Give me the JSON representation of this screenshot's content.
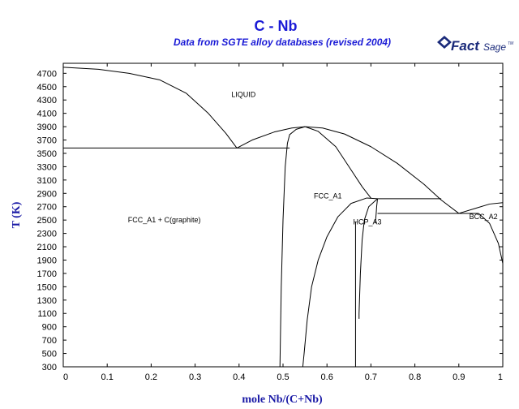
{
  "chart_data": {
    "type": "line",
    "title": "C - Nb",
    "subtitle": "Data from SGTE alloy databases (revised 2004)",
    "xlabel": "mole Nb/(C+Nb)",
    "ylabel": "T (K)",
    "xlim": [
      0,
      1
    ],
    "ylim": [
      300,
      4850
    ],
    "grid": false,
    "x_ticks": [
      0,
      0.1,
      0.2,
      0.3,
      0.4,
      0.5,
      0.6,
      0.7,
      0.8,
      0.9,
      1
    ],
    "x_tick_labels": [
      "0",
      "0.1",
      "0.2",
      "0.3",
      "0.4",
      "0.5",
      "0.6",
      "0.7",
      "0.8",
      "0.9",
      "1"
    ],
    "y_ticks": [
      300,
      500,
      700,
      900,
      1100,
      1300,
      1500,
      1700,
      1900,
      2100,
      2300,
      2500,
      2700,
      2900,
      3100,
      3300,
      3500,
      3700,
      3900,
      4100,
      4300,
      4500,
      4700
    ],
    "y_tick_labels": [
      "300",
      "500",
      "700",
      "900",
      "1100",
      "1300",
      "1500",
      "1700",
      "1900",
      "2100",
      "2300",
      "2500",
      "2700",
      "2900",
      "3100",
      "3300",
      "3500",
      "3700",
      "3900",
      "4100",
      "4300",
      "4500",
      "4700"
    ],
    "region_labels": [
      {
        "text": "LIQUID",
        "x": 0.41,
        "y": 4380
      },
      {
        "text": "FCC_A1 + C(graphite)",
        "x": 0.23,
        "y": 2500
      },
      {
        "text": "FCC_A1",
        "x": 0.602,
        "y": 2860
      },
      {
        "text": "HCP_A3",
        "x": 0.692,
        "y": 2470
      },
      {
        "text": "BCC_A2",
        "x": 0.955,
        "y": 2550
      }
    ],
    "series": [
      {
        "values": [
          [
            0,
            4790
          ],
          [
            0.08,
            4760
          ],
          [
            0.15,
            4700
          ],
          [
            0.22,
            4600
          ],
          [
            0.28,
            4400
          ],
          [
            0.33,
            4100
          ],
          [
            0.37,
            3800
          ],
          [
            0.395,
            3580
          ]
        ]
      },
      {
        "values": [
          [
            0.395,
            3580
          ],
          [
            0.43,
            3700
          ],
          [
            0.48,
            3820
          ],
          [
            0.52,
            3880
          ],
          [
            0.55,
            3900
          ]
        ]
      },
      {
        "values": [
          [
            0.55,
            3900
          ],
          [
            0.59,
            3880
          ],
          [
            0.64,
            3790
          ],
          [
            0.7,
            3600
          ],
          [
            0.76,
            3350
          ],
          [
            0.82,
            3040
          ],
          [
            0.86,
            2800
          ],
          [
            0.9,
            2600
          ]
        ]
      },
      {
        "values": [
          [
            0.55,
            3900
          ],
          [
            0.58,
            3830
          ],
          [
            0.62,
            3600
          ],
          [
            0.65,
            3300
          ],
          [
            0.68,
            3000
          ],
          [
            0.7,
            2830
          ]
        ]
      },
      {
        "values": [
          [
            0.55,
            3900
          ],
          [
            0.53,
            3860
          ],
          [
            0.515,
            3780
          ],
          [
            0.51,
            3650
          ],
          [
            0.505,
            3300
          ],
          [
            0.5,
            2500
          ],
          [
            0.496,
            1500
          ],
          [
            0.494,
            700
          ],
          [
            0.493,
            300
          ]
        ]
      },
      {
        "values": [
          [
            0,
            3580
          ],
          [
            0.515,
            3580
          ]
        ]
      },
      {
        "values": [
          [
            0.69,
            2830
          ],
          [
            0.715,
            2820
          ],
          [
            0.86,
            2820
          ]
        ]
      },
      {
        "values": [
          [
            0.715,
            2820
          ],
          [
            0.713,
            2700
          ],
          [
            0.712,
            2600
          ],
          [
            0.71,
            2450
          ]
        ]
      },
      {
        "values": [
          [
            0.69,
            2830
          ],
          [
            0.655,
            2750
          ],
          [
            0.625,
            2550
          ],
          [
            0.6,
            2250
          ],
          [
            0.58,
            1900
          ],
          [
            0.565,
            1500
          ],
          [
            0.555,
            1000
          ],
          [
            0.548,
            500
          ],
          [
            0.545,
            300
          ]
        ]
      },
      {
        "values": [
          [
            0.715,
            2820
          ],
          [
            0.695,
            2700
          ],
          [
            0.685,
            2500
          ],
          [
            0.68,
            2200
          ],
          [
            0.676,
            1700
          ],
          [
            0.674,
            1300
          ],
          [
            0.673,
            1100
          ],
          [
            0.673,
            1020
          ]
        ]
      },
      {
        "values": [
          [
            0.665,
            2470
          ],
          [
            0.665,
            300
          ]
        ]
      },
      {
        "values": [
          [
            0.715,
            2600
          ],
          [
            0.945,
            2600
          ]
        ]
      },
      {
        "values": [
          [
            0.9,
            2600
          ],
          [
            0.94,
            2680
          ],
          [
            0.97,
            2740
          ],
          [
            1.0,
            2760
          ]
        ]
      },
      {
        "values": [
          [
            0.945,
            2600
          ],
          [
            0.97,
            2450
          ],
          [
            0.99,
            2150
          ],
          [
            1.0,
            1850
          ]
        ]
      }
    ],
    "line_color": "#000000"
  },
  "header": {
    "title": "C - Nb",
    "subtitle": "Data from SGTE alloy databases (revised 2004)"
  },
  "logo": {
    "text_main": "Fact",
    "text_light": "Sage",
    "trademark": "TM",
    "color": "#1a2a7a"
  },
  "colors": {
    "title": "#1a1ad6",
    "axis_label": "#1a1aa6",
    "lines": "#000000"
  }
}
